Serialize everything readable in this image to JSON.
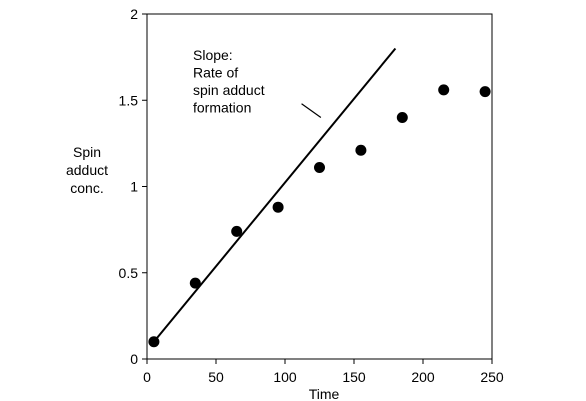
{
  "chart_data": {
    "type": "scatter",
    "xlabel": "Time",
    "ylabel": [
      "Spin",
      "adduct",
      "conc."
    ],
    "xlim": [
      0,
      250
    ],
    "ylim": [
      0,
      2
    ],
    "x_ticks": [
      0,
      50,
      100,
      150,
      200,
      250
    ],
    "y_ticks": [
      0,
      0.5,
      1,
      1.5,
      2
    ],
    "x_tick_labels": [
      "0",
      "50",
      "100",
      "150",
      "200",
      "250"
    ],
    "y_tick_labels": [
      "0",
      "0.5",
      "1",
      "1.5",
      "2"
    ],
    "grid": false,
    "series": [
      {
        "x": [
          5,
          35,
          65,
          95,
          125,
          155,
          185,
          215,
          245
        ],
        "y": [
          0.1,
          0.44,
          0.74,
          0.88,
          1.11,
          1.21,
          1.4,
          1.56,
          1.55
        ],
        "color": "#000000"
      }
    ],
    "lines": [
      {
        "x": [
          5,
          180
        ],
        "y": [
          0.1,
          1.8
        ],
        "color": "#000000"
      }
    ],
    "annotations": [
      {
        "lines": [
          "Slope:",
          "Rate of",
          "spin adduct",
          "formation"
        ],
        "pointer_to": [
          126,
          1.4
        ],
        "pointer_from": [
          112,
          1.48
        ]
      }
    ]
  }
}
